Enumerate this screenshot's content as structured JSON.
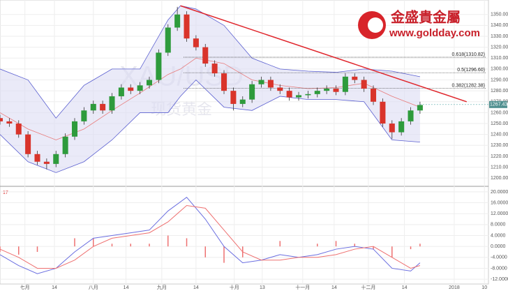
{
  "logo": {
    "name": "金盛貴金屬",
    "url": "www.goldday.com"
  },
  "chart_data": [
    {
      "type": "candlestick",
      "watermark": [
        "XAU/USD",
        "现货黄金"
      ],
      "x": [
        0,
        3,
        6,
        9,
        12,
        15,
        18,
        21,
        24,
        27,
        30,
        33,
        36,
        39,
        42,
        45,
        48,
        51,
        54,
        57,
        60,
        63,
        66,
        69,
        72,
        75,
        78,
        81,
        84,
        87,
        90,
        93,
        96,
        99,
        102,
        105,
        108,
        111,
        114,
        117,
        120,
        123,
        126,
        129,
        132,
        135
      ],
      "open": [
        1255,
        1252,
        1250,
        1240,
        1222,
        1215,
        1213,
        1222,
        1238,
        1252,
        1262,
        1268,
        1262,
        1275,
        1283,
        1280,
        1285,
        1290,
        1315,
        1338,
        1350,
        1328,
        1320,
        1305,
        1296,
        1280,
        1268,
        1272,
        1286,
        1290,
        1283,
        1280,
        1274,
        1276,
        1277,
        1280,
        1282,
        1279,
        1293,
        1290,
        1282,
        1270,
        1250,
        1242,
        1252,
        1262
      ],
      "high": [
        1258,
        1255,
        1253,
        1243,
        1225,
        1218,
        1225,
        1241,
        1255,
        1265,
        1271,
        1271,
        1278,
        1286,
        1286,
        1288,
        1293,
        1318,
        1341,
        1357,
        1353,
        1331,
        1323,
        1308,
        1299,
        1283,
        1275,
        1289,
        1293,
        1293,
        1286,
        1283,
        1279,
        1280,
        1283,
        1285,
        1285,
        1296,
        1296,
        1293,
        1285,
        1273,
        1253,
        1255,
        1265,
        1270
      ],
      "low": [
        1249,
        1247,
        1237,
        1219,
        1212,
        1208,
        1210,
        1219,
        1235,
        1249,
        1259,
        1259,
        1259,
        1272,
        1277,
        1277,
        1282,
        1287,
        1312,
        1335,
        1325,
        1317,
        1302,
        1293,
        1277,
        1262,
        1265,
        1269,
        1283,
        1280,
        1277,
        1271,
        1271,
        1273,
        1274,
        1277,
        1276,
        1276,
        1287,
        1279,
        1267,
        1247,
        1236,
        1239,
        1249,
        1259
      ],
      "close": [
        1252,
        1250,
        1240,
        1222,
        1215,
        1213,
        1222,
        1238,
        1252,
        1262,
        1268,
        1262,
        1275,
        1283,
        1280,
        1285,
        1290,
        1315,
        1338,
        1350,
        1328,
        1320,
        1305,
        1296,
        1280,
        1268,
        1272,
        1286,
        1290,
        1283,
        1280,
        1274,
        1276,
        1277,
        1280,
        1282,
        1279,
        1293,
        1290,
        1282,
        1270,
        1250,
        1242,
        1252,
        1262,
        1267
      ],
      "up_color": "#2e9b3c",
      "down_color": "#d9342b",
      "bands": {
        "x": [
          0,
          9,
          18,
          27,
          36,
          45,
          54,
          58,
          63,
          72,
          81,
          90,
          99,
          108,
          117,
          126,
          135
        ],
        "upper": [
          1300,
          1290,
          1255,
          1285,
          1300,
          1300,
          1345,
          1358,
          1355,
          1340,
          1310,
          1300,
          1298,
          1297,
          1300,
          1298,
          1293
        ],
        "middle": [
          1260,
          1245,
          1235,
          1245,
          1262,
          1278,
          1295,
          1300,
          1310,
          1305,
          1290,
          1285,
          1282,
          1283,
          1287,
          1275,
          1265
        ],
        "lower": [
          1240,
          1215,
          1205,
          1215,
          1235,
          1260,
          1260,
          1275,
          1290,
          1265,
          1262,
          1275,
          1272,
          1272,
          1270,
          1235,
          1233
        ],
        "band_color": "#5a5fd0",
        "middle_color": "#e87a7a"
      },
      "trendline": {
        "x": [
          58,
          150
        ],
        "y": [
          1358,
          1270
        ],
        "color": "#e0262c"
      },
      "fib_levels": [
        {
          "value": 1310.82,
          "label": "0.618(1310.82)"
        },
        {
          "value": 1296.6,
          "label": "0.5(1296.60)"
        },
        {
          "value": 1282.38,
          "label": "0.382(1282.38)"
        }
      ],
      "last_price": 1267.43,
      "xlim": [
        0,
        157
      ],
      "xticks": [
        {
          "value": 8,
          "label": "七月"
        },
        17.5,
        {
          "value": 30,
          "label": "八月"
        },
        40.5,
        {
          "value": 52,
          "label": "九月"
        },
        63,
        {
          "value": 75.3,
          "label": "十月"
        },
        84.3,
        {
          "value": 97.3,
          "label": "十一月"
        },
        107.4,
        {
          "value": 118.4,
          "label": "十二月"
        },
        130,
        146,
        155.7
      ],
      "xtick_labels_override": [
        "七月",
        "14",
        "八月",
        "14",
        "九月",
        "14",
        "十月",
        "13",
        "十一月",
        "14",
        "十二月",
        "14",
        "2018",
        "10"
      ],
      "ylim": [
        1195,
        1362
      ],
      "yticks": [
        {
          "value": 1200,
          "label": "1200.00"
        },
        {
          "value": 1210,
          "label": "1210.00"
        },
        {
          "value": 1220,
          "label": "1220.00"
        },
        {
          "value": 1230,
          "label": "1230.00"
        },
        {
          "value": 1240,
          "label": "1240.00"
        },
        {
          "value": 1250,
          "label": "1250.00"
        },
        {
          "value": 1260,
          "label": "1260.00"
        },
        {
          "value": 1270,
          "label": "1270.00"
        },
        {
          "value": 1280,
          "label": "1280.00"
        },
        {
          "value": 1290,
          "label": "1290.00"
        },
        {
          "value": 1300,
          "label": "1300.00"
        },
        {
          "value": 1310,
          "label": "1310.00"
        },
        {
          "value": 1320,
          "label": "1320.00"
        },
        {
          "value": 1330,
          "label": "1330.00"
        },
        {
          "value": 1340,
          "label": "1340.00"
        },
        {
          "value": 1350,
          "label": "1350.00"
        }
      ],
      "grid": true
    },
    {
      "type": "macd",
      "label": "17",
      "x": [
        0,
        6,
        12,
        18,
        24,
        30,
        36,
        42,
        48,
        54,
        60,
        66,
        72,
        78,
        84,
        90,
        96,
        102,
        108,
        114,
        120,
        126,
        132,
        135
      ],
      "series": [
        {
          "color": "#6a6ee0",
          "values": [
            -3,
            -7,
            -10,
            -8,
            -2,
            3,
            4,
            5,
            6,
            13,
            18,
            10,
            0,
            -6,
            -5,
            -3,
            -4,
            -3,
            -1,
            0,
            -1,
            -8,
            -9,
            -6
          ]
        },
        {
          "color": "#ee7070",
          "values": [
            -1,
            -4,
            -8,
            -8,
            -5,
            0,
            3,
            4,
            5,
            9,
            15,
            14,
            6,
            -2,
            -5,
            -5,
            -4,
            -4,
            -3,
            -1,
            0,
            -4,
            -8,
            -7
          ]
        }
      ],
      "histogram": {
        "color": "#ee7070",
        "values": [
          -2,
          -3,
          -2,
          0,
          3,
          3,
          1,
          1,
          1,
          4,
          3,
          -4,
          -6,
          -4,
          0,
          2,
          0,
          1,
          2,
          1,
          -1,
          -4,
          -1,
          1
        ]
      },
      "ylim": [
        -13,
        21
      ],
      "yticks": [
        {
          "value": 20,
          "label": "20.0000"
        },
        {
          "value": 16,
          "label": "16.0000"
        },
        {
          "value": 12,
          "label": "12.0000"
        },
        {
          "value": 8,
          "label": "8.0000"
        },
        {
          "value": 4,
          "label": "4.0000"
        },
        {
          "value": 0,
          "label": "0.0000"
        },
        {
          "value": -4,
          "label": "-4.0000"
        },
        {
          "value": -8,
          "label": "-8.0000"
        },
        {
          "value": -12,
          "label": "-12.0000"
        }
      ]
    }
  ]
}
